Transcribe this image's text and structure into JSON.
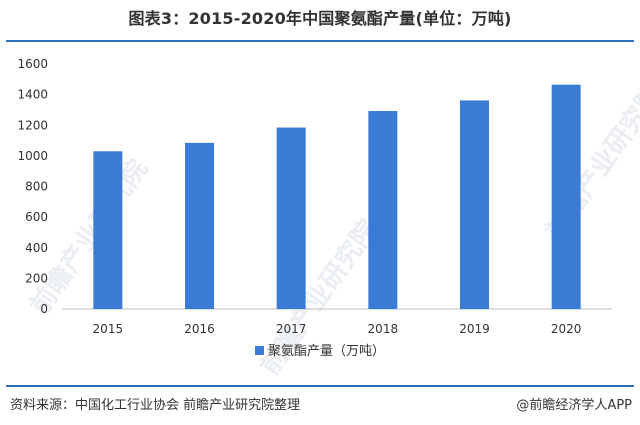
{
  "title": "图表3：2015-2020年中国聚氨酯产量(单位：万吨)",
  "footer": {
    "source": "资料来源：中国化工行业协会 前瞻产业研究院整理",
    "brand": "@前瞻经济学人APP"
  },
  "watermark": "前瞻产业研究院",
  "colors": {
    "bar": "#3a7bd5",
    "rule": "#2f6fbf",
    "grid": "#d9d9d9"
  },
  "chart_data": {
    "type": "bar",
    "categories": [
      "2015",
      "2016",
      "2017",
      "2018",
      "2019",
      "2020"
    ],
    "series": [
      {
        "name": "聚氨酯产量（万吨）",
        "values": [
          1030,
          1085,
          1185,
          1293,
          1362,
          1465
        ]
      }
    ],
    "ylim": [
      0,
      1600
    ],
    "yticks": [
      0,
      200,
      400,
      600,
      800,
      1000,
      1200,
      1400,
      1600
    ],
    "grid": false,
    "legend_position": "bottom-center",
    "xlabel": "",
    "ylabel": ""
  }
}
